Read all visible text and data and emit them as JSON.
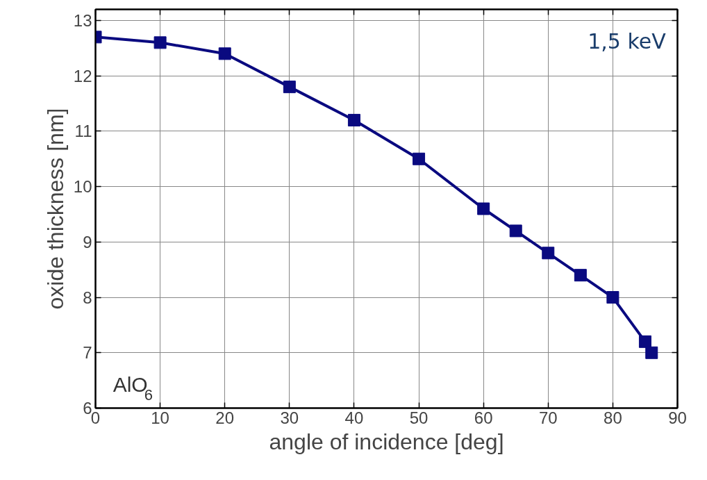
{
  "chart_data": {
    "type": "line",
    "xlabel": "angle of incidence [deg]",
    "ylabel": "oxide thickness [nm]",
    "x": [
      0,
      10,
      20,
      30,
      40,
      50,
      60,
      65,
      70,
      75,
      80,
      85,
      86
    ],
    "series": [
      {
        "color": "#0a0a80",
        "values": [
          12.7,
          12.6,
          12.4,
          11.8,
          11.2,
          10.5,
          9.6,
          9.2,
          8.8,
          8.4,
          8.0,
          7.2,
          7.0
        ]
      }
    ],
    "xlim": [
      0,
      90
    ],
    "xticks": [
      0,
      10,
      20,
      30,
      40,
      50,
      60,
      70,
      80,
      90
    ],
    "ylim": [
      6,
      13.2
    ],
    "yticks": [
      6,
      7,
      8,
      9,
      10,
      11,
      12,
      13
    ],
    "grid": true,
    "marker": "square",
    "line_style": "solid",
    "annotations": [
      "1,5 keV",
      "AlO$_{6}$"
    ]
  }
}
